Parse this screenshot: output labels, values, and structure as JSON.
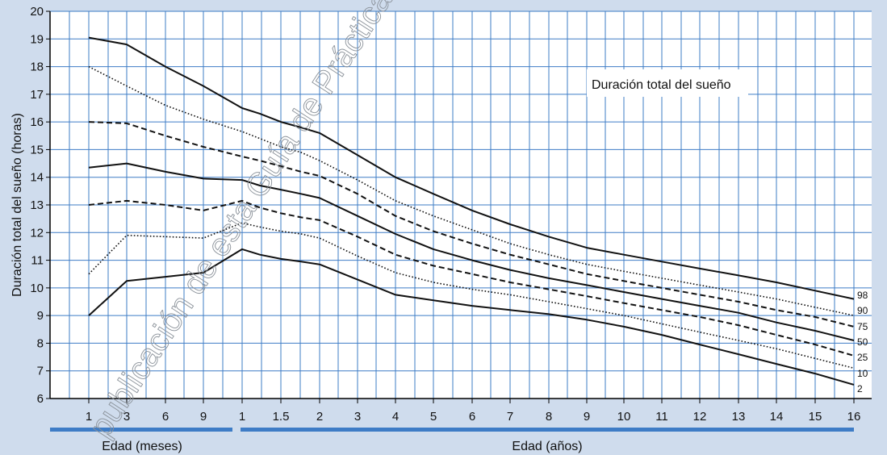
{
  "chart_data": {
    "type": "line",
    "title": "Duración total del sueño",
    "ylabel": "Duración total del sueño (horas)",
    "xlabel_months": "Edad (meses)",
    "xlabel_years": "Edad (años)",
    "ylim": [
      6,
      20
    ],
    "yticks": [
      "6",
      "7",
      "8",
      "9",
      "10",
      "11",
      "12",
      "13",
      "14",
      "15",
      "16",
      "17",
      "18",
      "19",
      "20"
    ],
    "x_tick_labels": [
      "1",
      "3",
      "6",
      "9",
      "1",
      "1.5",
      "2",
      "3",
      "4",
      "5",
      "6",
      "7",
      "8",
      "9",
      "10",
      "11",
      "12",
      "13",
      "14",
      "15",
      "16"
    ],
    "grid": true,
    "colors": {
      "background": "#cfdced",
      "plot": "#ffffff",
      "grid": "#3e7cc6",
      "line": "#111111",
      "axis_bar": "#3e7cc6"
    },
    "series": [
      {
        "name": "98",
        "style": "solid",
        "values": [
          19.05,
          18.8,
          18.0,
          17.3,
          16.5,
          16.3,
          16.0,
          15.8,
          15.6,
          14.8,
          14.0,
          13.4,
          12.8,
          12.3,
          11.85,
          11.45,
          11.2,
          10.95,
          10.7,
          10.45,
          10.2,
          9.9,
          9.6
        ]
      },
      {
        "name": "90",
        "style": "dotted",
        "values": [
          18.0,
          17.3,
          16.6,
          16.1,
          15.65,
          15.4,
          15.1,
          14.9,
          14.6,
          13.9,
          13.15,
          12.6,
          12.1,
          11.6,
          11.2,
          10.85,
          10.6,
          10.35,
          10.1,
          9.85,
          9.6,
          9.3,
          9.0
        ]
      },
      {
        "name": "75",
        "style": "dashed",
        "values": [
          16.0,
          15.95,
          15.5,
          15.1,
          14.75,
          14.6,
          14.4,
          14.2,
          14.05,
          13.4,
          12.6,
          12.05,
          11.6,
          11.2,
          10.85,
          10.5,
          10.25,
          10.0,
          9.75,
          9.5,
          9.2,
          8.95,
          8.6
        ]
      },
      {
        "name": "50",
        "style": "solid",
        "values": [
          14.35,
          14.5,
          14.2,
          13.95,
          13.9,
          13.7,
          13.55,
          13.4,
          13.25,
          12.6,
          11.95,
          11.4,
          11.0,
          10.65,
          10.35,
          10.1,
          9.85,
          9.6,
          9.35,
          9.1,
          8.75,
          8.45,
          8.1
        ]
      },
      {
        "name": "25",
        "style": "dashed",
        "values": [
          13.0,
          13.15,
          13.0,
          12.8,
          13.15,
          12.9,
          12.7,
          12.55,
          12.45,
          11.85,
          11.2,
          10.8,
          10.5,
          10.2,
          9.95,
          9.7,
          9.45,
          9.2,
          8.95,
          8.65,
          8.3,
          7.95,
          7.55
        ]
      },
      {
        "name": "10",
        "style": "dotted",
        "values": [
          10.5,
          11.9,
          11.85,
          11.8,
          12.35,
          12.2,
          12.05,
          11.95,
          11.8,
          11.15,
          10.55,
          10.2,
          9.95,
          9.75,
          9.5,
          9.25,
          9.0,
          8.7,
          8.4,
          8.1,
          7.8,
          7.45,
          7.1
        ]
      },
      {
        "name": "2",
        "style": "solid",
        "values": [
          9.0,
          10.25,
          10.4,
          10.55,
          11.4,
          11.2,
          11.05,
          10.95,
          10.85,
          10.3,
          9.75,
          9.55,
          9.35,
          9.2,
          9.05,
          8.85,
          8.6,
          8.3,
          7.95,
          7.6,
          7.25,
          6.9,
          6.5
        ]
      }
    ]
  },
  "watermark": "publicación de esta Guía de Práctica C"
}
